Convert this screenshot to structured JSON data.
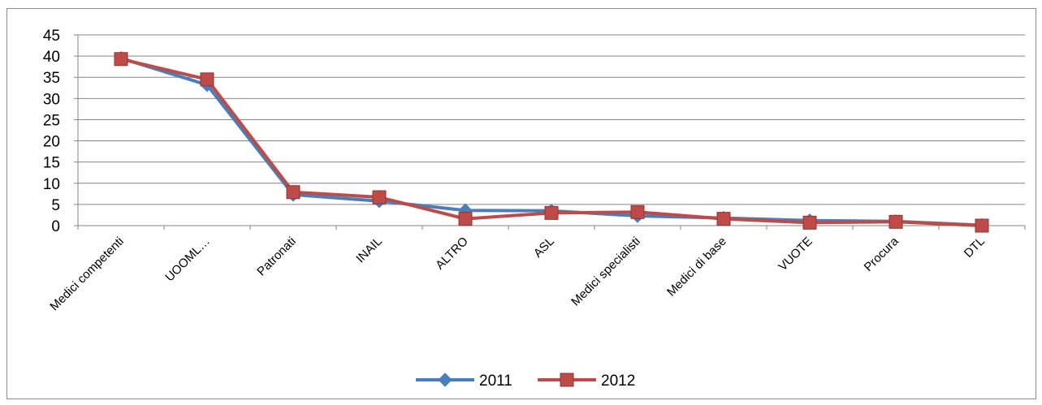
{
  "chart_data": {
    "type": "line",
    "title": "",
    "xlabel": "",
    "ylabel": "",
    "categories": [
      "Medici competenti",
      "UOOML…",
      "Patronati",
      "INAIL",
      "ALTRO",
      "ASL",
      "Medici specialisti",
      "Medici di base",
      "VUOTE",
      "Procura",
      "DTL"
    ],
    "yticks": [
      "0",
      "5",
      "10",
      "15",
      "20",
      "25",
      "30",
      "35",
      "40",
      "45"
    ],
    "ylim": [
      0,
      45
    ],
    "grid": true,
    "legend_position": "bottom",
    "series": [
      {
        "name": "2011",
        "color": "#4a7ebb",
        "marker": "diamond",
        "values": [
          39.5,
          33.2,
          7.3,
          5.8,
          3.6,
          3.5,
          2.3,
          1.8,
          1.2,
          1.0,
          0.1
        ]
      },
      {
        "name": "2012",
        "color": "#be4b48",
        "marker": "square",
        "values": [
          39.3,
          34.5,
          7.9,
          6.7,
          1.6,
          3.0,
          3.2,
          1.6,
          0.7,
          0.9,
          0.0
        ]
      }
    ]
  }
}
